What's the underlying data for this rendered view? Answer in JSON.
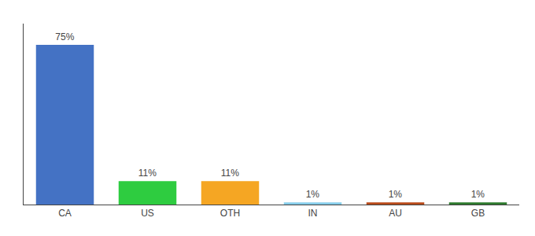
{
  "chart_data": {
    "type": "bar",
    "categories": [
      "CA",
      "US",
      "OTH",
      "IN",
      "AU",
      "GB"
    ],
    "values": [
      75,
      11,
      11,
      1,
      1,
      1
    ],
    "value_labels": [
      "75%",
      "11%",
      "11%",
      "1%",
      "1%",
      "1%"
    ],
    "colors": [
      "#4472c4",
      "#2ecc40",
      "#f5a623",
      "#87ceeb",
      "#b94a1a",
      "#2d7a2d"
    ],
    "ylim": [
      0,
      85
    ],
    "data_labels": true,
    "tick_labels": "x",
    "grid": false
  }
}
